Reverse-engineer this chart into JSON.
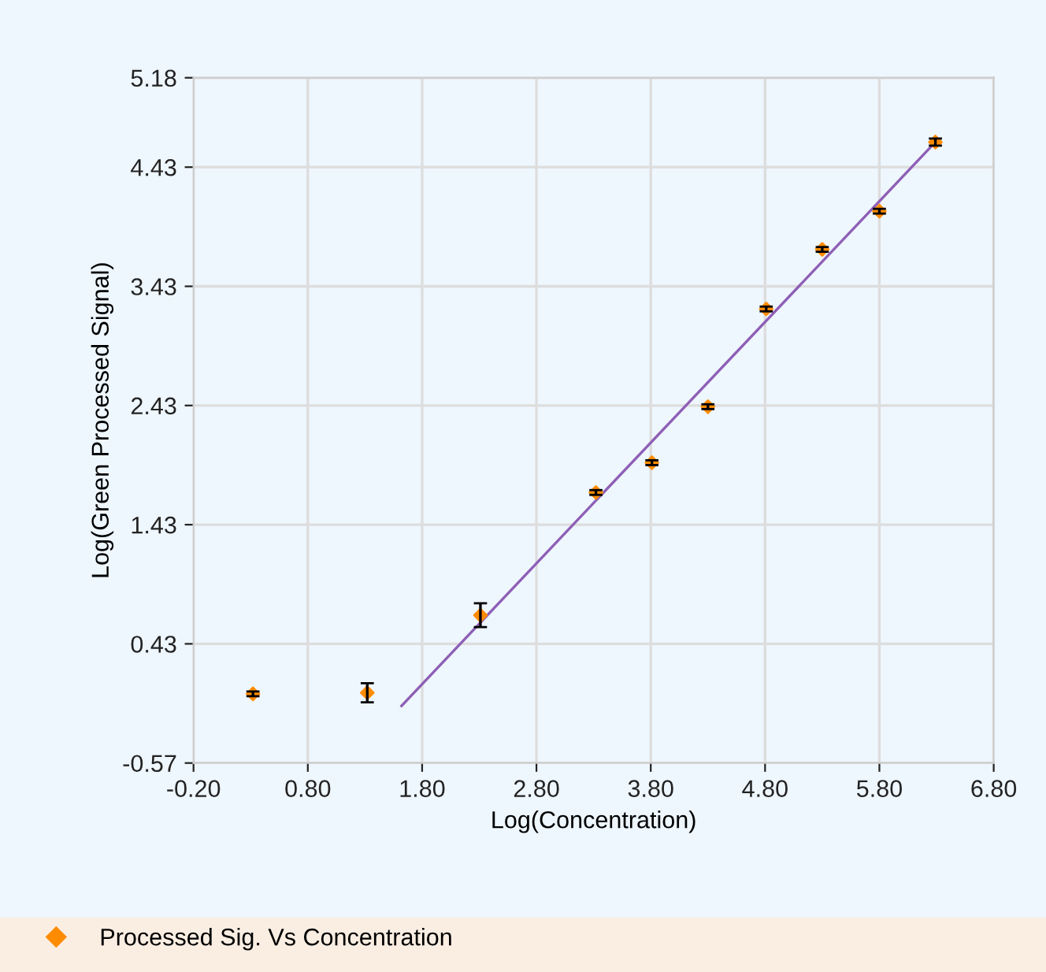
{
  "chart_data": {
    "type": "scatter",
    "xlabel": "Log(Concentration)",
    "ylabel": "Log(Green Processed Signal)",
    "xlim": [
      -0.2,
      6.8
    ],
    "xticks": [
      {
        "value": -0.2,
        "label": "-0.20"
      },
      {
        "value": 0.8,
        "label": "0.80"
      },
      {
        "value": 1.8,
        "label": "1.80"
      },
      {
        "value": 2.8,
        "label": "2.80"
      },
      {
        "value": 3.8,
        "label": "3.80"
      },
      {
        "value": 4.8,
        "label": "4.80"
      },
      {
        "value": 5.8,
        "label": "5.80"
      },
      {
        "value": 6.8,
        "label": "6.80"
      }
    ],
    "ylim": [
      -0.57,
      5.18
    ],
    "yticks": [
      -0.57,
      0.43,
      1.43,
      2.43,
      3.43,
      4.43,
      5.18
    ],
    "grid": true,
    "legend": "bottom",
    "series": [
      {
        "name": "Processed Sig. Vs Concentration",
        "marker": "diamond",
        "color": "#ff8c00",
        "x": [
          0.32,
          1.32,
          2.31,
          3.32,
          3.81,
          4.3,
          4.81,
          5.3,
          5.8,
          6.29
        ],
        "values": [
          0.01,
          0.02,
          0.67,
          1.7,
          1.95,
          2.42,
          3.24,
          3.74,
          4.06,
          4.64
        ],
        "errors": [
          0.02,
          0.08,
          0.1,
          0.02,
          0.02,
          0.02,
          0.02,
          0.02,
          0.02,
          0.03
        ]
      },
      {
        "type": "line",
        "color": "#8e5fb5",
        "x": [
          1.62,
          6.29
        ],
        "values": [
          -0.09,
          4.64
        ]
      }
    ]
  }
}
